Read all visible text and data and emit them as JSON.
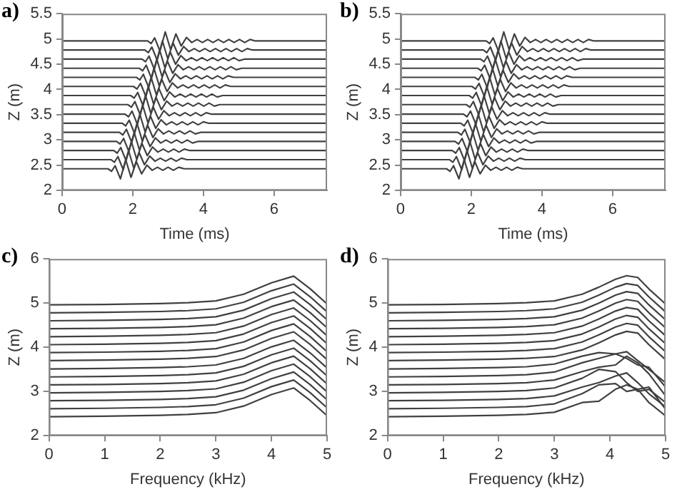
{
  "chart_data": [
    {
      "type": "line",
      "title": "a)",
      "xlabel": "Time (ms)",
      "ylabel": "Z (m)",
      "xlim": [
        0,
        7.5
      ],
      "xticks": [
        0,
        2,
        4,
        6
      ],
      "ylim": [
        2,
        5.5
      ],
      "yticks": [
        2,
        2.5,
        3,
        3.5,
        4,
        4.5,
        5,
        5.5
      ],
      "grid": false,
      "legend": false,
      "marker": "none",
      "line_style": "solid",
      "series": [
        {
          "color": "#404040",
          "x": [
            0,
            1.3,
            1.4,
            1.5,
            1.65,
            1.8,
            1.95,
            2.1,
            2.25,
            2.4,
            2.55,
            2.7,
            2.85,
            3.0,
            3.15,
            3.3,
            3.45,
            7.5
          ],
          "values": [
            2.43,
            2.43,
            2.38,
            2.49,
            2.23,
            2.61,
            2.26,
            2.57,
            2.33,
            2.5,
            2.4,
            2.46,
            2.4,
            2.46,
            2.4,
            2.46,
            2.43,
            2.43
          ]
        },
        {
          "color": "#404040",
          "x": [
            0,
            1.38,
            1.48,
            1.58,
            1.73,
            1.88,
            2.03,
            2.18,
            2.33,
            2.48,
            2.63,
            2.78,
            2.93,
            3.08,
            3.23,
            3.38,
            3.53,
            7.5
          ],
          "values": [
            2.61,
            2.61,
            2.56,
            2.67,
            2.41,
            2.79,
            2.44,
            2.75,
            2.51,
            2.68,
            2.58,
            2.64,
            2.58,
            2.64,
            2.58,
            2.64,
            2.61,
            2.61
          ]
        },
        {
          "color": "#404040",
          "x": [
            0,
            1.46,
            1.56,
            1.66,
            1.81,
            1.96,
            2.11,
            2.26,
            2.41,
            2.56,
            2.71,
            2.86,
            3.01,
            3.16,
            3.31,
            3.46,
            3.61,
            7.5
          ],
          "values": [
            2.79,
            2.79,
            2.74,
            2.85,
            2.59,
            2.97,
            2.62,
            2.93,
            2.69,
            2.86,
            2.76,
            2.82,
            2.76,
            2.82,
            2.76,
            2.82,
            2.79,
            2.79
          ]
        },
        {
          "color": "#404040",
          "x": [
            0,
            1.54,
            1.64,
            1.74,
            1.89,
            2.04,
            2.19,
            2.34,
            2.49,
            2.64,
            2.79,
            2.94,
            3.09,
            3.24,
            3.39,
            3.54,
            3.69,
            3.84,
            7.5
          ],
          "values": [
            2.97,
            2.97,
            2.92,
            3.03,
            2.77,
            3.15,
            2.8,
            3.11,
            2.87,
            3.04,
            2.94,
            3,
            2.94,
            3,
            2.94,
            3,
            2.94,
            2.97,
            2.97
          ]
        },
        {
          "color": "#404040",
          "x": [
            0,
            1.62,
            1.72,
            1.82,
            1.97,
            2.12,
            2.27,
            2.42,
            2.57,
            2.72,
            2.87,
            3.02,
            3.17,
            3.32,
            3.47,
            3.62,
            3.77,
            3.92,
            7.5
          ],
          "values": [
            3.15,
            3.15,
            3.1,
            3.21,
            2.95,
            3.33,
            2.98,
            3.29,
            3.05,
            3.22,
            3.12,
            3.18,
            3.12,
            3.18,
            3.12,
            3.18,
            3.12,
            3.15,
            3.15
          ]
        },
        {
          "color": "#404040",
          "x": [
            0,
            1.7,
            1.8,
            1.9,
            2.05,
            2.2,
            2.35,
            2.5,
            2.65,
            2.8,
            2.95,
            3.1,
            3.25,
            3.4,
            3.55,
            3.7,
            3.85,
            4.0,
            4.15,
            7.5
          ],
          "values": [
            3.33,
            3.33,
            3.28,
            3.39,
            3.13,
            3.51,
            3.16,
            3.47,
            3.23,
            3.4,
            3.3,
            3.36,
            3.3,
            3.36,
            3.3,
            3.36,
            3.3,
            3.36,
            3.33,
            3.33
          ]
        },
        {
          "color": "#404040",
          "x": [
            0,
            1.78,
            1.88,
            1.98,
            2.13,
            2.28,
            2.43,
            2.58,
            2.73,
            2.88,
            3.03,
            3.18,
            3.33,
            3.48,
            3.63,
            3.78,
            3.93,
            4.08,
            4.23,
            7.5
          ],
          "values": [
            3.51,
            3.51,
            3.46,
            3.57,
            3.31,
            3.69,
            3.34,
            3.65,
            3.41,
            3.58,
            3.48,
            3.54,
            3.48,
            3.54,
            3.48,
            3.54,
            3.48,
            3.54,
            3.51,
            3.51
          ]
        },
        {
          "color": "#404040",
          "x": [
            0,
            1.86,
            1.96,
            2.06,
            2.21,
            2.36,
            2.51,
            2.66,
            2.81,
            2.96,
            3.11,
            3.26,
            3.41,
            3.56,
            3.71,
            3.86,
            4.01,
            4.16,
            4.31,
            4.46,
            7.5
          ],
          "values": [
            3.7,
            3.7,
            3.65,
            3.76,
            3.5,
            3.88,
            3.53,
            3.84,
            3.6,
            3.77,
            3.67,
            3.73,
            3.67,
            3.73,
            3.67,
            3.73,
            3.67,
            3.73,
            3.67,
            3.7,
            3.7
          ]
        },
        {
          "color": "#404040",
          "x": [
            0,
            1.94,
            2.04,
            2.14,
            2.29,
            2.44,
            2.59,
            2.74,
            2.89,
            3.04,
            3.19,
            3.34,
            3.49,
            3.64,
            3.79,
            3.94,
            4.09,
            4.24,
            4.39,
            4.54,
            7.5
          ],
          "values": [
            3.88,
            3.88,
            3.83,
            3.94,
            3.68,
            4.06,
            3.71,
            4.02,
            3.78,
            3.95,
            3.85,
            3.91,
            3.85,
            3.91,
            3.85,
            3.91,
            3.85,
            3.91,
            3.85,
            3.88,
            3.88
          ]
        },
        {
          "color": "#404040",
          "x": [
            0,
            2.02,
            2.12,
            2.22,
            2.37,
            2.52,
            2.67,
            2.82,
            2.97,
            3.12,
            3.27,
            3.42,
            3.57,
            3.72,
            3.87,
            4.02,
            4.17,
            4.32,
            4.47,
            4.62,
            4.77,
            7.5
          ],
          "values": [
            4.06,
            4.06,
            4.01,
            4.12,
            3.86,
            4.24,
            3.89,
            4.2,
            3.96,
            4.13,
            4.03,
            4.09,
            4.03,
            4.09,
            4.03,
            4.09,
            4.03,
            4.09,
            4.03,
            4.09,
            4.06,
            4.06
          ]
        },
        {
          "color": "#404040",
          "x": [
            0,
            2.1,
            2.2,
            2.3,
            2.45,
            2.6,
            2.75,
            2.9,
            3.05,
            3.2,
            3.35,
            3.5,
            3.65,
            3.8,
            3.95,
            4.1,
            4.25,
            4.4,
            4.55,
            4.7,
            4.85,
            7.5
          ],
          "values": [
            4.24,
            4.24,
            4.19,
            4.3,
            4.04,
            4.42,
            4.07,
            4.38,
            4.14,
            4.31,
            4.21,
            4.27,
            4.21,
            4.27,
            4.21,
            4.27,
            4.21,
            4.27,
            4.21,
            4.27,
            4.24,
            4.24
          ]
        },
        {
          "color": "#404040",
          "x": [
            0,
            2.18,
            2.28,
            2.38,
            2.53,
            2.68,
            2.83,
            2.98,
            3.13,
            3.28,
            3.43,
            3.58,
            3.73,
            3.88,
            4.03,
            4.18,
            4.33,
            4.48,
            4.63,
            4.78,
            4.93,
            5.08,
            7.5
          ],
          "values": [
            4.42,
            4.42,
            4.37,
            4.48,
            4.22,
            4.6,
            4.25,
            4.56,
            4.32,
            4.49,
            4.39,
            4.45,
            4.39,
            4.45,
            4.39,
            4.45,
            4.39,
            4.45,
            4.39,
            4.45,
            4.39,
            4.42,
            4.42
          ]
        },
        {
          "color": "#404040",
          "x": [
            0,
            2.26,
            2.36,
            2.46,
            2.61,
            2.76,
            2.91,
            3.06,
            3.21,
            3.36,
            3.51,
            3.66,
            3.81,
            3.96,
            4.11,
            4.26,
            4.41,
            4.56,
            4.71,
            4.86,
            5.01,
            5.16,
            7.5
          ],
          "values": [
            4.6,
            4.6,
            4.55,
            4.66,
            4.4,
            4.78,
            4.43,
            4.74,
            4.5,
            4.67,
            4.57,
            4.63,
            4.57,
            4.63,
            4.57,
            4.63,
            4.57,
            4.63,
            4.57,
            4.63,
            4.57,
            4.6,
            4.6
          ]
        },
        {
          "color": "#404040",
          "x": [
            0,
            2.34,
            2.44,
            2.54,
            2.69,
            2.84,
            2.99,
            3.14,
            3.29,
            3.44,
            3.59,
            3.74,
            3.89,
            4.04,
            4.19,
            4.34,
            4.49,
            4.64,
            4.79,
            4.94,
            5.09,
            5.24,
            5.39,
            7.5
          ],
          "values": [
            4.78,
            4.78,
            4.73,
            4.84,
            4.58,
            4.96,
            4.61,
            4.92,
            4.68,
            4.85,
            4.75,
            4.81,
            4.75,
            4.81,
            4.75,
            4.81,
            4.75,
            4.81,
            4.75,
            4.81,
            4.75,
            4.81,
            4.78,
            4.78
          ]
        },
        {
          "color": "#404040",
          "x": [
            0,
            2.42,
            2.52,
            2.62,
            2.77,
            2.92,
            3.07,
            3.22,
            3.37,
            3.52,
            3.67,
            3.82,
            3.97,
            4.12,
            4.27,
            4.42,
            4.57,
            4.72,
            4.87,
            5.02,
            5.17,
            5.32,
            5.47,
            7.5
          ],
          "values": [
            4.96,
            4.96,
            4.91,
            5.02,
            4.76,
            5.14,
            4.79,
            5.1,
            4.86,
            5.03,
            4.93,
            4.99,
            4.93,
            4.99,
            4.93,
            4.99,
            4.93,
            4.99,
            4.93,
            4.99,
            4.93,
            4.99,
            4.96,
            4.96
          ]
        }
      ]
    },
    {
      "type": "line",
      "title": "b)",
      "xlabel": "Time (ms)",
      "ylabel": "Z (m)",
      "xlim": [
        0,
        7.5
      ],
      "xticks": [
        0,
        2,
        4,
        6
      ],
      "ylim": [
        2,
        5.5
      ],
      "yticks": [
        2,
        2.5,
        3,
        3.5,
        4,
        4.5,
        5,
        5.5
      ],
      "grid": false,
      "legend": false,
      "marker": "none",
      "line_style": "solid",
      "series": [
        {
          "color": "#404040",
          "x": [
            0,
            1.3,
            1.4,
            1.5,
            1.65,
            1.8,
            1.95,
            2.1,
            2.25,
            2.4,
            2.55,
            2.7,
            2.85,
            3.0,
            3.15,
            3.3,
            3.45,
            7.5
          ],
          "values": [
            2.43,
            2.43,
            2.38,
            2.49,
            2.23,
            2.61,
            2.26,
            2.57,
            2.33,
            2.5,
            2.4,
            2.46,
            2.4,
            2.46,
            2.4,
            2.46,
            2.43,
            2.43
          ]
        },
        {
          "color": "#404040",
          "x": [
            0,
            1.38,
            1.48,
            1.58,
            1.73,
            1.88,
            2.03,
            2.18,
            2.33,
            2.48,
            2.63,
            2.78,
            2.93,
            3.08,
            3.23,
            3.38,
            3.53,
            7.5
          ],
          "values": [
            2.61,
            2.61,
            2.56,
            2.67,
            2.41,
            2.79,
            2.44,
            2.75,
            2.51,
            2.68,
            2.58,
            2.64,
            2.58,
            2.64,
            2.58,
            2.64,
            2.61,
            2.61
          ]
        },
        {
          "color": "#404040",
          "x": [
            0,
            1.46,
            1.56,
            1.66,
            1.81,
            1.96,
            2.11,
            2.26,
            2.41,
            2.56,
            2.71,
            2.86,
            3.01,
            3.16,
            3.31,
            3.46,
            3.61,
            7.5
          ],
          "values": [
            2.79,
            2.79,
            2.74,
            2.85,
            2.59,
            2.97,
            2.62,
            2.93,
            2.69,
            2.86,
            2.76,
            2.82,
            2.76,
            2.82,
            2.76,
            2.82,
            2.79,
            2.79
          ]
        },
        {
          "color": "#404040",
          "x": [
            0,
            1.54,
            1.64,
            1.74,
            1.89,
            2.04,
            2.19,
            2.34,
            2.49,
            2.64,
            2.79,
            2.94,
            3.09,
            3.24,
            3.39,
            3.54,
            3.69,
            3.84,
            7.5
          ],
          "values": [
            2.97,
            2.97,
            2.92,
            3.03,
            2.77,
            3.15,
            2.8,
            3.11,
            2.87,
            3.04,
            2.94,
            3,
            2.94,
            3,
            2.94,
            3,
            2.94,
            2.97,
            2.97
          ]
        },
        {
          "color": "#404040",
          "x": [
            0,
            1.62,
            1.72,
            1.82,
            1.97,
            2.12,
            2.27,
            2.42,
            2.57,
            2.72,
            2.87,
            3.02,
            3.17,
            3.32,
            3.47,
            3.62,
            3.77,
            3.92,
            7.5
          ],
          "values": [
            3.15,
            3.15,
            3.1,
            3.21,
            2.95,
            3.33,
            2.98,
            3.29,
            3.05,
            3.22,
            3.12,
            3.18,
            3.12,
            3.18,
            3.12,
            3.18,
            3.12,
            3.15,
            3.15
          ]
        },
        {
          "color": "#404040",
          "x": [
            0,
            1.7,
            1.8,
            1.9,
            2.05,
            2.2,
            2.35,
            2.5,
            2.65,
            2.8,
            2.95,
            3.1,
            3.25,
            3.4,
            3.55,
            3.7,
            3.85,
            4.0,
            4.15,
            7.5
          ],
          "values": [
            3.33,
            3.33,
            3.28,
            3.39,
            3.13,
            3.51,
            3.16,
            3.47,
            3.23,
            3.4,
            3.3,
            3.36,
            3.3,
            3.36,
            3.3,
            3.36,
            3.3,
            3.36,
            3.33,
            3.33
          ]
        },
        {
          "color": "#404040",
          "x": [
            0,
            1.78,
            1.88,
            1.98,
            2.13,
            2.28,
            2.43,
            2.58,
            2.73,
            2.88,
            3.03,
            3.18,
            3.33,
            3.48,
            3.63,
            3.78,
            3.93,
            4.08,
            4.23,
            7.5
          ],
          "values": [
            3.51,
            3.51,
            3.46,
            3.57,
            3.31,
            3.69,
            3.34,
            3.65,
            3.41,
            3.58,
            3.48,
            3.54,
            3.48,
            3.54,
            3.48,
            3.54,
            3.48,
            3.54,
            3.51,
            3.51
          ]
        },
        {
          "color": "#404040",
          "x": [
            0,
            1.86,
            1.96,
            2.06,
            2.21,
            2.36,
            2.51,
            2.66,
            2.81,
            2.96,
            3.11,
            3.26,
            3.41,
            3.56,
            3.71,
            3.86,
            4.01,
            4.16,
            4.31,
            4.46,
            7.5
          ],
          "values": [
            3.7,
            3.7,
            3.65,
            3.76,
            3.5,
            3.88,
            3.53,
            3.84,
            3.6,
            3.77,
            3.67,
            3.73,
            3.67,
            3.73,
            3.67,
            3.73,
            3.67,
            3.73,
            3.67,
            3.7,
            3.7
          ]
        },
        {
          "color": "#404040",
          "x": [
            0,
            1.94,
            2.04,
            2.14,
            2.29,
            2.44,
            2.59,
            2.74,
            2.89,
            3.04,
            3.19,
            3.34,
            3.49,
            3.64,
            3.79,
            3.94,
            4.09,
            4.24,
            4.39,
            4.54,
            7.5
          ],
          "values": [
            3.88,
            3.88,
            3.83,
            3.94,
            3.68,
            4.06,
            3.71,
            4.02,
            3.78,
            3.95,
            3.85,
            3.91,
            3.85,
            3.91,
            3.85,
            3.91,
            3.85,
            3.91,
            3.85,
            3.88,
            3.88
          ]
        },
        {
          "color": "#404040",
          "x": [
            0,
            2.02,
            2.12,
            2.22,
            2.37,
            2.52,
            2.67,
            2.82,
            2.97,
            3.12,
            3.27,
            3.42,
            3.57,
            3.72,
            3.87,
            4.02,
            4.17,
            4.32,
            4.47,
            4.62,
            4.77,
            7.5
          ],
          "values": [
            4.06,
            4.06,
            4.01,
            4.12,
            3.86,
            4.24,
            3.89,
            4.2,
            3.96,
            4.13,
            4.03,
            4.09,
            4.03,
            4.09,
            4.03,
            4.09,
            4.03,
            4.09,
            4.03,
            4.09,
            4.06,
            4.06
          ]
        },
        {
          "color": "#404040",
          "x": [
            0,
            2.1,
            2.2,
            2.3,
            2.45,
            2.6,
            2.75,
            2.9,
            3.05,
            3.2,
            3.35,
            3.5,
            3.65,
            3.8,
            3.95,
            4.1,
            4.25,
            4.4,
            4.55,
            4.7,
            4.85,
            7.5
          ],
          "values": [
            4.24,
            4.24,
            4.19,
            4.3,
            4.04,
            4.42,
            4.07,
            4.38,
            4.14,
            4.31,
            4.21,
            4.27,
            4.21,
            4.27,
            4.21,
            4.27,
            4.21,
            4.27,
            4.21,
            4.27,
            4.24,
            4.24
          ]
        },
        {
          "color": "#404040",
          "x": [
            0,
            2.18,
            2.28,
            2.38,
            2.53,
            2.68,
            2.83,
            2.98,
            3.13,
            3.28,
            3.43,
            3.58,
            3.73,
            3.88,
            4.03,
            4.18,
            4.33,
            4.48,
            4.63,
            4.78,
            4.93,
            5.08,
            7.5
          ],
          "values": [
            4.42,
            4.42,
            4.37,
            4.48,
            4.22,
            4.6,
            4.25,
            4.56,
            4.32,
            4.49,
            4.39,
            4.45,
            4.39,
            4.45,
            4.39,
            4.45,
            4.39,
            4.45,
            4.39,
            4.45,
            4.39,
            4.42,
            4.42
          ]
        },
        {
          "color": "#404040",
          "x": [
            0,
            2.26,
            2.36,
            2.46,
            2.61,
            2.76,
            2.91,
            3.06,
            3.21,
            3.36,
            3.51,
            3.66,
            3.81,
            3.96,
            4.11,
            4.26,
            4.41,
            4.56,
            4.71,
            4.86,
            5.01,
            5.16,
            7.5
          ],
          "values": [
            4.6,
            4.6,
            4.55,
            4.66,
            4.4,
            4.78,
            4.43,
            4.74,
            4.5,
            4.67,
            4.57,
            4.63,
            4.57,
            4.63,
            4.57,
            4.63,
            4.57,
            4.63,
            4.57,
            4.63,
            4.57,
            4.6,
            4.6
          ]
        },
        {
          "color": "#404040",
          "x": [
            0,
            2.34,
            2.44,
            2.54,
            2.69,
            2.84,
            2.99,
            3.14,
            3.29,
            3.44,
            3.59,
            3.74,
            3.89,
            4.04,
            4.19,
            4.34,
            4.49,
            4.64,
            4.79,
            4.94,
            5.09,
            5.24,
            5.39,
            7.5
          ],
          "values": [
            4.78,
            4.78,
            4.73,
            4.84,
            4.58,
            4.96,
            4.61,
            4.92,
            4.68,
            4.85,
            4.75,
            4.81,
            4.75,
            4.81,
            4.75,
            4.81,
            4.75,
            4.81,
            4.75,
            4.81,
            4.75,
            4.81,
            4.78,
            4.78
          ]
        },
        {
          "color": "#404040",
          "x": [
            0,
            2.42,
            2.52,
            2.62,
            2.77,
            2.92,
            3.07,
            3.22,
            3.37,
            3.52,
            3.67,
            3.82,
            3.97,
            4.12,
            4.27,
            4.42,
            4.57,
            4.72,
            4.87,
            5.02,
            5.17,
            5.32,
            5.47,
            7.5
          ],
          "values": [
            4.96,
            4.96,
            4.91,
            5.02,
            4.76,
            5.14,
            4.79,
            5.1,
            4.86,
            5.03,
            4.93,
            4.99,
            4.93,
            4.99,
            4.93,
            4.99,
            4.93,
            4.99,
            4.93,
            4.99,
            4.93,
            4.99,
            4.96,
            4.96
          ]
        }
      ]
    },
    {
      "type": "line",
      "title": "c)",
      "xlabel": "Frequency (kHz)",
      "ylabel": "Z (m)",
      "xlim": [
        0,
        5
      ],
      "xticks": [
        0,
        1,
        2,
        3,
        4,
        5
      ],
      "ylim": [
        2,
        6
      ],
      "yticks": [
        2,
        3,
        4,
        5,
        6
      ],
      "grid": false,
      "legend": false,
      "marker": "none",
      "line_style": "solid",
      "x": [
        0,
        1,
        2,
        2.5,
        3,
        3.5,
        4,
        4.4,
        4.7,
        5
      ],
      "series": [
        {
          "color": "#404040",
          "values": [
            2.43,
            2.44,
            2.46,
            2.48,
            2.52,
            2.67,
            2.93,
            3.08,
            2.79,
            2.45
          ]
        },
        {
          "color": "#404040",
          "values": [
            2.61,
            2.62,
            2.64,
            2.66,
            2.7,
            2.85,
            3.11,
            3.26,
            2.97,
            2.63
          ]
        },
        {
          "color": "#404040",
          "values": [
            2.79,
            2.8,
            2.82,
            2.84,
            2.88,
            3.03,
            3.29,
            3.44,
            3.15,
            2.81
          ]
        },
        {
          "color": "#404040",
          "values": [
            2.97,
            2.98,
            3,
            3.02,
            3.06,
            3.21,
            3.47,
            3.62,
            3.33,
            2.99
          ]
        },
        {
          "color": "#404040",
          "values": [
            3.15,
            3.16,
            3.18,
            3.2,
            3.24,
            3.39,
            3.65,
            3.8,
            3.51,
            3.17
          ]
        },
        {
          "color": "#404040",
          "values": [
            3.33,
            3.34,
            3.36,
            3.38,
            3.42,
            3.57,
            3.83,
            3.98,
            3.69,
            3.35
          ]
        },
        {
          "color": "#404040",
          "values": [
            3.51,
            3.52,
            3.54,
            3.56,
            3.6,
            3.75,
            4.01,
            4.16,
            3.87,
            3.53
          ]
        },
        {
          "color": "#404040",
          "values": [
            3.7,
            3.71,
            3.73,
            3.75,
            3.79,
            3.94,
            4.2,
            4.35,
            4.06,
            3.72
          ]
        },
        {
          "color": "#404040",
          "values": [
            3.88,
            3.89,
            3.91,
            3.93,
            3.97,
            4.12,
            4.38,
            4.53,
            4.24,
            3.9
          ]
        },
        {
          "color": "#404040",
          "values": [
            4.06,
            4.07,
            4.09,
            4.11,
            4.15,
            4.3,
            4.56,
            4.71,
            4.42,
            4.08
          ]
        },
        {
          "color": "#404040",
          "values": [
            4.24,
            4.25,
            4.27,
            4.29,
            4.33,
            4.48,
            4.74,
            4.89,
            4.6,
            4.26
          ]
        },
        {
          "color": "#404040",
          "values": [
            4.42,
            4.43,
            4.45,
            4.47,
            4.51,
            4.66,
            4.92,
            5.07,
            4.78,
            4.44
          ]
        },
        {
          "color": "#404040",
          "values": [
            4.6,
            4.61,
            4.63,
            4.65,
            4.69,
            4.84,
            5.1,
            5.25,
            4.96,
            4.62
          ]
        },
        {
          "color": "#404040",
          "values": [
            4.78,
            4.79,
            4.81,
            4.83,
            4.87,
            5.02,
            5.28,
            5.43,
            5.14,
            4.8
          ]
        },
        {
          "color": "#404040",
          "values": [
            4.96,
            4.97,
            4.99,
            5.01,
            5.05,
            5.2,
            5.46,
            5.61,
            5.32,
            4.98
          ]
        }
      ]
    },
    {
      "type": "line",
      "title": "d)",
      "xlabel": "Frequency (kHz)",
      "ylabel": "Z (m)",
      "xlim": [
        0,
        5
      ],
      "xticks": [
        0,
        1,
        2,
        3,
        4,
        5
      ],
      "ylim": [
        2,
        6
      ],
      "yticks": [
        2,
        3,
        4,
        5,
        6
      ],
      "grid": false,
      "legend": false,
      "marker": "none",
      "line_style": "solid",
      "x": [
        0,
        1,
        2,
        2.5,
        3,
        3.5,
        3.8,
        4.1,
        4.3,
        4.5,
        4.7,
        5
      ],
      "series": [
        {
          "color": "#404040",
          "values": [
            2.43,
            2.44,
            2.46,
            2.48,
            2.53,
            2.75,
            2.78,
            3.05,
            3.15,
            3.05,
            2.75,
            2.45
          ]
        },
        {
          "color": "#404040",
          "values": [
            2.61,
            2.62,
            2.64,
            2.66,
            2.72,
            2.95,
            3.15,
            3.18,
            3.0,
            3.05,
            3.1,
            2.6
          ]
        },
        {
          "color": "#404040",
          "values": [
            2.79,
            2.8,
            2.82,
            2.84,
            2.9,
            3.1,
            3.2,
            3.35,
            3.42,
            3.2,
            2.95,
            2.65
          ]
        },
        {
          "color": "#404040",
          "values": [
            2.97,
            2.98,
            3.0,
            3.02,
            3.08,
            3.3,
            3.5,
            3.45,
            3.2,
            3.0,
            3.05,
            2.75
          ]
        },
        {
          "color": "#404040",
          "values": [
            3.15,
            3.16,
            3.18,
            3.2,
            3.26,
            3.45,
            3.55,
            3.6,
            3.8,
            3.65,
            3.4,
            2.9
          ]
        },
        {
          "color": "#404040",
          "values": [
            3.33,
            3.34,
            3.36,
            3.38,
            3.44,
            3.65,
            3.75,
            3.85,
            3.75,
            3.6,
            3.55,
            3.1
          ]
        },
        {
          "color": "#404040",
          "values": [
            3.51,
            3.52,
            3.54,
            3.56,
            3.62,
            3.8,
            3.88,
            3.85,
            3.9,
            3.7,
            3.5,
            3.2
          ]
        },
        {
          "color": "#404040",
          "values": [
            3.7,
            3.71,
            3.73,
            3.75,
            3.79,
            3.94,
            4.1,
            4.28,
            4.36,
            4.32,
            4.06,
            3.72
          ]
        },
        {
          "color": "#404040",
          "values": [
            3.88,
            3.89,
            3.91,
            3.93,
            3.97,
            4.12,
            4.28,
            4.46,
            4.54,
            4.5,
            4.24,
            3.9
          ]
        },
        {
          "color": "#404040",
          "values": [
            4.06,
            4.07,
            4.09,
            4.11,
            4.15,
            4.3,
            4.46,
            4.64,
            4.72,
            4.68,
            4.42,
            4.08
          ]
        },
        {
          "color": "#404040",
          "values": [
            4.24,
            4.25,
            4.27,
            4.29,
            4.33,
            4.48,
            4.64,
            4.82,
            4.9,
            4.86,
            4.6,
            4.26
          ]
        },
        {
          "color": "#404040",
          "values": [
            4.42,
            4.43,
            4.45,
            4.47,
            4.51,
            4.66,
            4.82,
            5,
            5.08,
            5.04,
            4.78,
            4.44
          ]
        },
        {
          "color": "#404040",
          "values": [
            4.6,
            4.61,
            4.63,
            4.65,
            4.69,
            4.84,
            5,
            5.18,
            5.26,
            5.22,
            4.96,
            4.62
          ]
        },
        {
          "color": "#404040",
          "values": [
            4.78,
            4.79,
            4.81,
            4.83,
            4.87,
            5.02,
            5.18,
            5.36,
            5.44,
            5.4,
            5.14,
            4.8
          ]
        },
        {
          "color": "#404040",
          "values": [
            4.96,
            4.97,
            4.99,
            5.01,
            5.05,
            5.2,
            5.36,
            5.54,
            5.62,
            5.58,
            5.32,
            4.98
          ]
        }
      ]
    }
  ]
}
